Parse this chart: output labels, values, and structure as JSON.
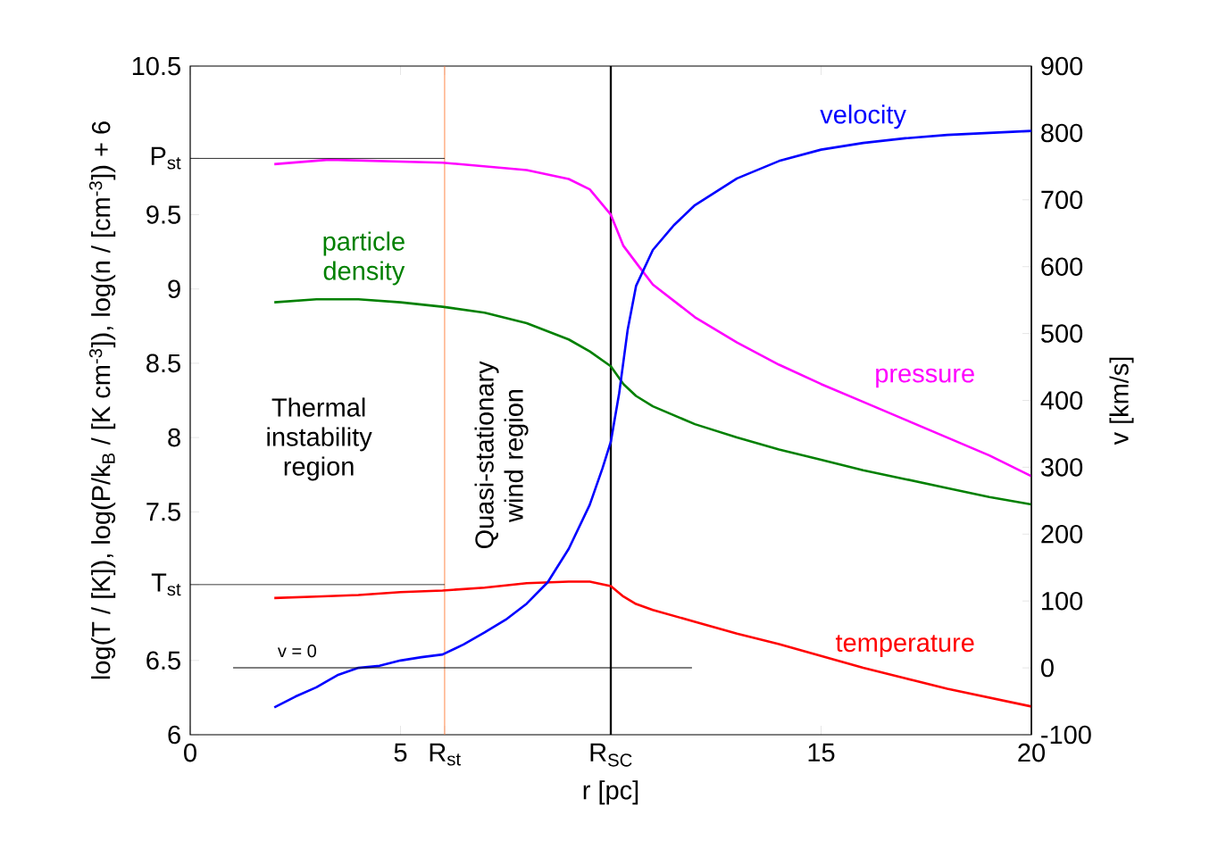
{
  "chart_data": {
    "type": "line",
    "xlabel": "r [pc]",
    "ylabel": "log(T / [K]), log(P/k$_{B}$ / [K cm$^{-3}$]), log(n / [cm$^{-3}$]) + 6",
    "y2label": "v [km/s]",
    "xlim": [
      0,
      20
    ],
    "xticks": [
      0,
      5,
      {
        "value": 6.05,
        "label": "R$_{st}$"
      },
      {
        "value": 10,
        "label": "R$_{SC}$"
      },
      15,
      20
    ],
    "ylim": [
      6,
      10.5
    ],
    "yticks": [
      6,
      6.5,
      {
        "value": 7.01,
        "label": "T$_{st}$"
      },
      7.5,
      8,
      8.5,
      9,
      9.5,
      {
        "value": 9.88,
        "label": "P$_{st}$"
      },
      10.5
    ],
    "y2lim": [
      -100,
      900
    ],
    "y2ticks": [
      -100,
      0,
      100,
      200,
      300,
      400,
      500,
      600,
      700,
      800,
      900
    ],
    "series": [
      {
        "name": "pressure",
        "color": "#ff00ff",
        "x": [
          2,
          3.3,
          6,
          8,
          9,
          9.5,
          10,
          10.3,
          10.7,
          11,
          12,
          13,
          14,
          15,
          16,
          17,
          18,
          19,
          20
        ],
        "values": [
          9.84,
          9.87,
          9.85,
          9.8,
          9.74,
          9.67,
          9.5,
          9.29,
          9.14,
          9.03,
          8.81,
          8.64,
          8.49,
          8.36,
          8.24,
          8.12,
          8.0,
          7.88,
          7.74
        ]
      },
      {
        "name": "particle density",
        "color": "#008000",
        "x": [
          2,
          3,
          4,
          5,
          6,
          7,
          8,
          9,
          9.5,
          10,
          10.3,
          10.6,
          11,
          12,
          13,
          14,
          15,
          16,
          17,
          18,
          19,
          20
        ],
        "values": [
          8.91,
          8.93,
          8.93,
          8.91,
          8.88,
          8.84,
          8.77,
          8.66,
          8.58,
          8.48,
          8.36,
          8.28,
          8.21,
          8.09,
          8.0,
          7.92,
          7.85,
          7.78,
          7.72,
          7.66,
          7.6,
          7.55
        ]
      },
      {
        "name": "temperature",
        "color": "#ff0000",
        "x": [
          2,
          3,
          4,
          5,
          6,
          7,
          8,
          9,
          9.5,
          10,
          10.3,
          10.6,
          11,
          12,
          13,
          14,
          15,
          16,
          17,
          18,
          19,
          20
        ],
        "values": [
          6.92,
          6.93,
          6.94,
          6.96,
          6.97,
          6.99,
          7.02,
          7.03,
          7.03,
          7.0,
          6.93,
          6.88,
          6.84,
          6.76,
          6.68,
          6.61,
          6.53,
          6.45,
          6.38,
          6.31,
          6.25,
          6.19
        ]
      },
      {
        "name": "velocity",
        "color": "#0000ff",
        "axis": "y2",
        "x": [
          2,
          2.5,
          3,
          3.5,
          4,
          4.5,
          5,
          5.5,
          6,
          6.5,
          7,
          7.5,
          8,
          8.5,
          9,
          9.5,
          9.8,
          10,
          10.2,
          10.4,
          10.6,
          11,
          11.5,
          12,
          13,
          14,
          15,
          16,
          17,
          18,
          19,
          20
        ],
        "values": [
          -59,
          -43,
          -29,
          -11,
          0,
          3,
          11,
          16,
          20,
          35,
          53,
          72,
          96,
          128,
          178,
          244,
          298,
          338,
          411,
          505,
          571,
          625,
          662,
          692,
          732,
          758,
          775,
          785,
          792,
          797,
          800,
          803
        ]
      },
      {
        "color": "#000000",
        "x": [
          0,
          6.05
        ],
        "values": [
          9.88,
          9.88
        ]
      },
      {
        "color": "#000000",
        "x": [
          0,
          6.05
        ],
        "values": [
          7.01,
          7.01
        ]
      },
      {
        "name": "v = 0",
        "color": "#000000",
        "axis": "y2",
        "x": [
          1.02,
          11.93
        ],
        "values": [
          0,
          0
        ]
      }
    ],
    "ref_lines": [
      {
        "axis": "x",
        "value": 6.05,
        "color": "#ff8040"
      },
      {
        "axis": "x",
        "value": 10,
        "color": "#000000"
      }
    ],
    "annotations": [
      "Thermal instability region",
      "Quasi-stationary wind region"
    ]
  }
}
